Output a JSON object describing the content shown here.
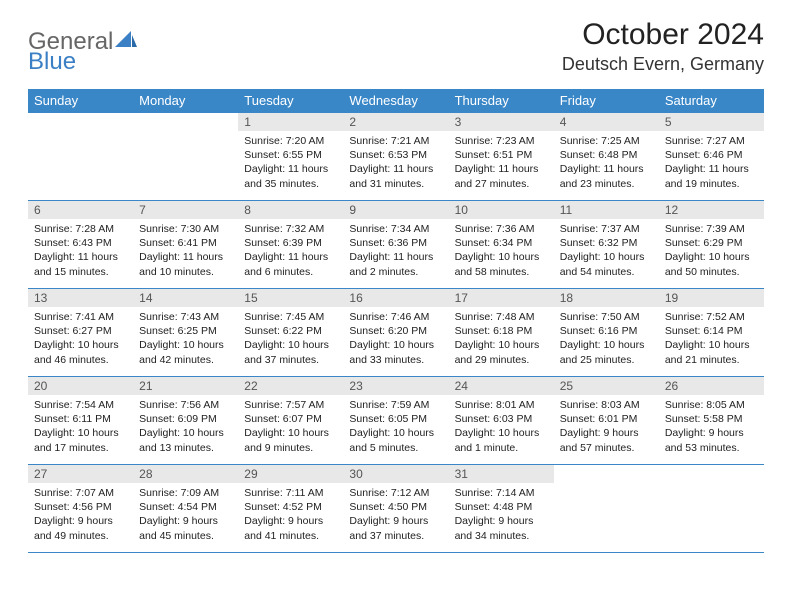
{
  "logo": {
    "text_gray": "General",
    "text_blue": "Blue"
  },
  "header": {
    "month": "October 2024",
    "location": "Deutsch Evern, Germany"
  },
  "colors": {
    "header_bg": "#3a87c8",
    "header_fg": "#ffffff",
    "daynum_bg": "#e8e8e8",
    "daynum_fg": "#555555",
    "row_border": "#3a87c8",
    "logo_gray": "#666666",
    "logo_blue": "#3b7fc4"
  },
  "weekdays": [
    "Sunday",
    "Monday",
    "Tuesday",
    "Wednesday",
    "Thursday",
    "Friday",
    "Saturday"
  ],
  "weeks": [
    [
      {
        "empty": true
      },
      {
        "empty": true
      },
      {
        "num": "1",
        "sunrise": "Sunrise: 7:20 AM",
        "sunset": "Sunset: 6:55 PM",
        "daylight": "Daylight: 11 hours and 35 minutes."
      },
      {
        "num": "2",
        "sunrise": "Sunrise: 7:21 AM",
        "sunset": "Sunset: 6:53 PM",
        "daylight": "Daylight: 11 hours and 31 minutes."
      },
      {
        "num": "3",
        "sunrise": "Sunrise: 7:23 AM",
        "sunset": "Sunset: 6:51 PM",
        "daylight": "Daylight: 11 hours and 27 minutes."
      },
      {
        "num": "4",
        "sunrise": "Sunrise: 7:25 AM",
        "sunset": "Sunset: 6:48 PM",
        "daylight": "Daylight: 11 hours and 23 minutes."
      },
      {
        "num": "5",
        "sunrise": "Sunrise: 7:27 AM",
        "sunset": "Sunset: 6:46 PM",
        "daylight": "Daylight: 11 hours and 19 minutes."
      }
    ],
    [
      {
        "num": "6",
        "sunrise": "Sunrise: 7:28 AM",
        "sunset": "Sunset: 6:43 PM",
        "daylight": "Daylight: 11 hours and 15 minutes."
      },
      {
        "num": "7",
        "sunrise": "Sunrise: 7:30 AM",
        "sunset": "Sunset: 6:41 PM",
        "daylight": "Daylight: 11 hours and 10 minutes."
      },
      {
        "num": "8",
        "sunrise": "Sunrise: 7:32 AM",
        "sunset": "Sunset: 6:39 PM",
        "daylight": "Daylight: 11 hours and 6 minutes."
      },
      {
        "num": "9",
        "sunrise": "Sunrise: 7:34 AM",
        "sunset": "Sunset: 6:36 PM",
        "daylight": "Daylight: 11 hours and 2 minutes."
      },
      {
        "num": "10",
        "sunrise": "Sunrise: 7:36 AM",
        "sunset": "Sunset: 6:34 PM",
        "daylight": "Daylight: 10 hours and 58 minutes."
      },
      {
        "num": "11",
        "sunrise": "Sunrise: 7:37 AM",
        "sunset": "Sunset: 6:32 PM",
        "daylight": "Daylight: 10 hours and 54 minutes."
      },
      {
        "num": "12",
        "sunrise": "Sunrise: 7:39 AM",
        "sunset": "Sunset: 6:29 PM",
        "daylight": "Daylight: 10 hours and 50 minutes."
      }
    ],
    [
      {
        "num": "13",
        "sunrise": "Sunrise: 7:41 AM",
        "sunset": "Sunset: 6:27 PM",
        "daylight": "Daylight: 10 hours and 46 minutes."
      },
      {
        "num": "14",
        "sunrise": "Sunrise: 7:43 AM",
        "sunset": "Sunset: 6:25 PM",
        "daylight": "Daylight: 10 hours and 42 minutes."
      },
      {
        "num": "15",
        "sunrise": "Sunrise: 7:45 AM",
        "sunset": "Sunset: 6:22 PM",
        "daylight": "Daylight: 10 hours and 37 minutes."
      },
      {
        "num": "16",
        "sunrise": "Sunrise: 7:46 AM",
        "sunset": "Sunset: 6:20 PM",
        "daylight": "Daylight: 10 hours and 33 minutes."
      },
      {
        "num": "17",
        "sunrise": "Sunrise: 7:48 AM",
        "sunset": "Sunset: 6:18 PM",
        "daylight": "Daylight: 10 hours and 29 minutes."
      },
      {
        "num": "18",
        "sunrise": "Sunrise: 7:50 AM",
        "sunset": "Sunset: 6:16 PM",
        "daylight": "Daylight: 10 hours and 25 minutes."
      },
      {
        "num": "19",
        "sunrise": "Sunrise: 7:52 AM",
        "sunset": "Sunset: 6:14 PM",
        "daylight": "Daylight: 10 hours and 21 minutes."
      }
    ],
    [
      {
        "num": "20",
        "sunrise": "Sunrise: 7:54 AM",
        "sunset": "Sunset: 6:11 PM",
        "daylight": "Daylight: 10 hours and 17 minutes."
      },
      {
        "num": "21",
        "sunrise": "Sunrise: 7:56 AM",
        "sunset": "Sunset: 6:09 PM",
        "daylight": "Daylight: 10 hours and 13 minutes."
      },
      {
        "num": "22",
        "sunrise": "Sunrise: 7:57 AM",
        "sunset": "Sunset: 6:07 PM",
        "daylight": "Daylight: 10 hours and 9 minutes."
      },
      {
        "num": "23",
        "sunrise": "Sunrise: 7:59 AM",
        "sunset": "Sunset: 6:05 PM",
        "daylight": "Daylight: 10 hours and 5 minutes."
      },
      {
        "num": "24",
        "sunrise": "Sunrise: 8:01 AM",
        "sunset": "Sunset: 6:03 PM",
        "daylight": "Daylight: 10 hours and 1 minute."
      },
      {
        "num": "25",
        "sunrise": "Sunrise: 8:03 AM",
        "sunset": "Sunset: 6:01 PM",
        "daylight": "Daylight: 9 hours and 57 minutes."
      },
      {
        "num": "26",
        "sunrise": "Sunrise: 8:05 AM",
        "sunset": "Sunset: 5:58 PM",
        "daylight": "Daylight: 9 hours and 53 minutes."
      }
    ],
    [
      {
        "num": "27",
        "sunrise": "Sunrise: 7:07 AM",
        "sunset": "Sunset: 4:56 PM",
        "daylight": "Daylight: 9 hours and 49 minutes."
      },
      {
        "num": "28",
        "sunrise": "Sunrise: 7:09 AM",
        "sunset": "Sunset: 4:54 PM",
        "daylight": "Daylight: 9 hours and 45 minutes."
      },
      {
        "num": "29",
        "sunrise": "Sunrise: 7:11 AM",
        "sunset": "Sunset: 4:52 PM",
        "daylight": "Daylight: 9 hours and 41 minutes."
      },
      {
        "num": "30",
        "sunrise": "Sunrise: 7:12 AM",
        "sunset": "Sunset: 4:50 PM",
        "daylight": "Daylight: 9 hours and 37 minutes."
      },
      {
        "num": "31",
        "sunrise": "Sunrise: 7:14 AM",
        "sunset": "Sunset: 4:48 PM",
        "daylight": "Daylight: 9 hours and 34 minutes."
      },
      {
        "empty": true
      },
      {
        "empty": true
      }
    ]
  ]
}
